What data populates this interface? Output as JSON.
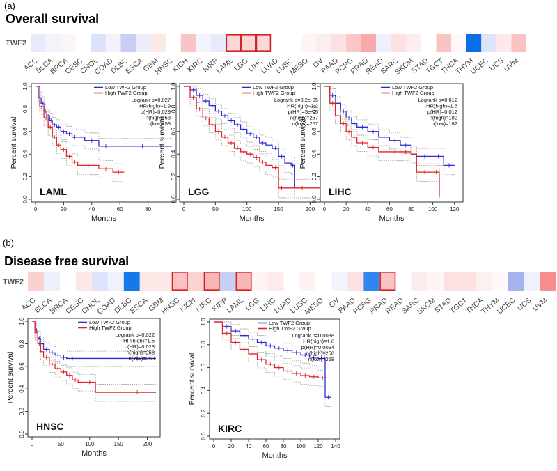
{
  "panels": {
    "a": {
      "label": "(a)",
      "title": "Overall survival",
      "gene": "TWF2",
      "heatmap": {
        "cancers": [
          "ACC",
          "BLCA",
          "BRCA",
          "CESC",
          "CHOL",
          "COAD",
          "DLBC",
          "ESCA",
          "GBM",
          "HNSC",
          "KICH",
          "KIRC",
          "KIRP",
          "LAML",
          "LGG",
          "LIHC",
          "LUAD",
          "LUSC",
          "MESO",
          "OV",
          "PAAD",
          "PCPG",
          "PRAD",
          "READ",
          "SARC",
          "SKCM",
          "STAD",
          "TGCT",
          "THCA",
          "THYM",
          "UCEC",
          "UCS",
          "UVM"
        ],
        "colors": [
          "#e6eafc",
          "#f2f3fd",
          "#fbf5f7",
          "#ffffff",
          "#dde2fb",
          "#f2f2fb",
          "#c7cdf4",
          "#eceefb",
          "#fde8e8",
          "#ffffff",
          "#fbc4c4",
          "#f2f3fd",
          "#e6eafc",
          "#fdd7d7",
          "#fbd4d4",
          "#fcd9d9",
          "#ffffff",
          "#ffffff",
          "#fff5f5",
          "#fdeeee",
          "#fde1e1",
          "#fbc6c6",
          "#f9a9a9",
          "#eef0fb",
          "#fde0e0",
          "#fdeded",
          "#ffffff",
          "#fbc2c2",
          "#fff8f8",
          "#0a6fe6",
          "#dde3fb",
          "#fde9e9",
          "#fbc2c2"
        ],
        "highlighted": [
          "LAML",
          "LGG",
          "LIHC"
        ]
      }
    },
    "b": {
      "label": "(b)",
      "title": "Disease free survival",
      "gene": "TWF2",
      "heatmap": {
        "cancers": [
          "ACC",
          "BLCA",
          "BRCA",
          "CESC",
          "CHOL",
          "COAD",
          "DLBC",
          "ESCA",
          "GBM",
          "HNSC",
          "KICH",
          "KIRC",
          "KIRP",
          "LAML",
          "LGG",
          "LIHC",
          "LUAD",
          "LUSC",
          "MESO",
          "OV",
          "PAAD",
          "PCPG",
          "PRAD",
          "READ",
          "SARC",
          "SKCM",
          "STAD",
          "TGCT",
          "THCA",
          "THYM",
          "UCEC",
          "UCS",
          "UVM"
        ],
        "colors": [
          "#fbd0d0",
          "#eef0fb",
          "#ffffff",
          "#fde6e6",
          "#dde3fb",
          "#f0f2fb",
          "#1579ea",
          "#fde8e8",
          "#fde8e8",
          "#fbc2c2",
          "#fcd3d3",
          "#f9b4b4",
          "#c8cff4",
          "#f9b6b6",
          "#fff5f5",
          "#fdeaea",
          "#ffffff",
          "#fdf1f1",
          "#ffffff",
          "#f2f4fc",
          "#fde0e0",
          "#2e87ee",
          "#fbc4c4",
          "#ffffff",
          "#fdecec",
          "#fff5f5",
          "#fde1e1",
          "#fde1e1",
          "#fdf0f0",
          "#fff8f8",
          "#a5b3ee",
          "#f0f2fb",
          "#f58e8e"
        ],
        "highlighted": [
          "HNSC",
          "KIRC",
          "LAML",
          "PRAD"
        ]
      }
    }
  },
  "chart_data": [
    {
      "type": "line",
      "panel": "a",
      "title": "LAML",
      "xlabel": "Months",
      "ylabel": "Percent survival",
      "xlim": [
        0,
        97
      ],
      "ylim": [
        0,
        1.0
      ],
      "xticks": [
        "0",
        "20",
        "40",
        "60",
        "80"
      ],
      "yticks": [
        "0.0",
        "0.2",
        "0.4",
        "0.6",
        "0.8",
        "1.0"
      ],
      "legend": [
        "Low TWF2 Group",
        "High TWF2 Group"
      ],
      "stats": [
        "Logrank p=0.027",
        "HR(high)=1.9",
        "p(HR)=0.029",
        "n(high)=53",
        "n(low)=53"
      ],
      "series": [
        {
          "name": "Low TWF2 Group",
          "color": "#2b2bd6",
          "x": [
            0,
            2,
            4,
            6,
            8,
            10,
            12,
            15,
            18,
            22,
            26,
            30,
            35,
            45,
            55,
            97
          ],
          "y": [
            1,
            0.9,
            0.85,
            0.78,
            0.74,
            0.7,
            0.66,
            0.64,
            0.6,
            0.58,
            0.55,
            0.55,
            0.52,
            0.47,
            0.47,
            0.47
          ]
        },
        {
          "name": "High TWF2 Group",
          "color": "#e0222a",
          "x": [
            0,
            3,
            6,
            9,
            12,
            15,
            18,
            22,
            26,
            30,
            45,
            55,
            63
          ],
          "y": [
            1,
            0.82,
            0.72,
            0.64,
            0.55,
            0.48,
            0.44,
            0.38,
            0.33,
            0.3,
            0.27,
            0.24,
            0.24
          ]
        }
      ]
    },
    {
      "type": "line",
      "panel": "a",
      "title": "LGG",
      "xlabel": "Months",
      "ylabel": "Percent survival",
      "xlim": [
        0,
        215
      ],
      "ylim": [
        0,
        1.0
      ],
      "xticks": [
        "0",
        "50",
        "100",
        "150",
        "200"
      ],
      "yticks": [
        "0.0",
        "0.2",
        "0.4",
        "0.6",
        "0.8",
        "1.0"
      ],
      "legend": [
        "Low TWF2 Group",
        "High TWF2 Group"
      ],
      "stats": [
        "Logrank p=3.2e-05",
        "HR(high)=2.2",
        "p(HR)=5e-05",
        "n(high)=257",
        "n(low)=257"
      ],
      "series": [
        {
          "name": "Low TWF2 Group",
          "color": "#2b2bd6",
          "x": [
            0,
            10,
            20,
            30,
            40,
            50,
            60,
            70,
            80,
            90,
            100,
            110,
            120,
            130,
            140,
            150,
            160,
            170,
            175
          ],
          "y": [
            1,
            0.97,
            0.92,
            0.87,
            0.83,
            0.78,
            0.74,
            0.7,
            0.66,
            0.62,
            0.58,
            0.55,
            0.5,
            0.48,
            0.45,
            0.38,
            0.32,
            0.3,
            0.1
          ]
        },
        {
          "name": "High TWF2 Group",
          "color": "#e0222a",
          "x": [
            0,
            10,
            20,
            30,
            40,
            50,
            60,
            70,
            80,
            90,
            100,
            110,
            120,
            130,
            140,
            150,
            160,
            215
          ],
          "y": [
            1,
            0.9,
            0.8,
            0.72,
            0.66,
            0.6,
            0.55,
            0.5,
            0.45,
            0.42,
            0.4,
            0.37,
            0.33,
            0.3,
            0.28,
            0.1,
            0.1,
            0.1
          ]
        }
      ]
    },
    {
      "type": "line",
      "panel": "a",
      "title": "LIHC",
      "xlabel": "Months",
      "ylabel": "Percent survival",
      "xlim": [
        0,
        124
      ],
      "ylim": [
        0,
        1.0
      ],
      "xticks": [
        "0",
        "20",
        "40",
        "60",
        "80",
        "100",
        "120"
      ],
      "yticks": [
        "0.0",
        "0.2",
        "0.4",
        "0.6",
        "0.8",
        "1.0"
      ],
      "legend": [
        "Low TWF2 Group",
        "High TWF2 Group"
      ],
      "stats": [
        "Logrank p=0.012",
        "HR(high)=1.6",
        "p(HR)=0.012",
        "n(high)=182",
        "n(low)=182"
      ],
      "series": [
        {
          "name": "Low TWF2 Group",
          "color": "#2b2bd6",
          "x": [
            0,
            5,
            10,
            15,
            20,
            25,
            30,
            40,
            50,
            60,
            70,
            80,
            85,
            100,
            110,
            120
          ],
          "y": [
            1,
            0.92,
            0.85,
            0.78,
            0.72,
            0.67,
            0.64,
            0.6,
            0.55,
            0.52,
            0.48,
            0.4,
            0.38,
            0.38,
            0.3,
            0.3
          ]
        },
        {
          "name": "High TWF2 Group",
          "color": "#e0222a",
          "x": [
            0,
            5,
            10,
            15,
            20,
            25,
            30,
            40,
            50,
            60,
            70,
            80,
            85,
            100,
            106
          ],
          "y": [
            1,
            0.85,
            0.74,
            0.67,
            0.6,
            0.55,
            0.5,
            0.46,
            0.42,
            0.42,
            0.42,
            0.4,
            0.24,
            0.24,
            0.02
          ]
        }
      ]
    },
    {
      "type": "line",
      "panel": "b",
      "title": "HNSC",
      "xlabel": "Months",
      "ylabel": "Percent survival",
      "xlim": [
        0,
        215
      ],
      "ylim": [
        0,
        1.0
      ],
      "xticks": [
        "0",
        "50",
        "100",
        "150",
        "200"
      ],
      "yticks": [
        "0.0",
        "0.2",
        "0.4",
        "0.6",
        "0.8",
        "1.0"
      ],
      "legend": [
        "Low TWF2 Group",
        "High TWF2 Group"
      ],
      "stats": [
        "Logrank p=0.022",
        "HR(high)=1.5",
        "p(HR)=0.023",
        "n(high)=258",
        "n(low)=259"
      ],
      "series": [
        {
          "name": "Low TWF2 Group",
          "color": "#2b2bd6",
          "x": [
            0,
            5,
            10,
            15,
            20,
            30,
            40,
            50,
            60,
            80,
            100,
            150,
            215
          ],
          "y": [
            1,
            0.92,
            0.85,
            0.8,
            0.75,
            0.72,
            0.7,
            0.68,
            0.67,
            0.67,
            0.67,
            0.67,
            0.67
          ]
        },
        {
          "name": "High TWF2 Group",
          "color": "#e0222a",
          "x": [
            0,
            5,
            10,
            15,
            20,
            30,
            40,
            50,
            60,
            70,
            80,
            90,
            110,
            150,
            215
          ],
          "y": [
            1,
            0.9,
            0.8,
            0.73,
            0.68,
            0.62,
            0.58,
            0.55,
            0.52,
            0.48,
            0.46,
            0.46,
            0.37,
            0.37,
            0.37
          ]
        }
      ]
    },
    {
      "type": "line",
      "panel": "b",
      "title": "KIRC",
      "xlabel": "Months",
      "ylabel": "Percent survival",
      "xlim": [
        0,
        140
      ],
      "ylim": [
        0,
        1.0
      ],
      "xticks": [
        "0",
        "20",
        "40",
        "60",
        "80",
        "100",
        "120",
        "140"
      ],
      "yticks": [
        "0.0",
        "0.2",
        "0.4",
        "0.6",
        "0.8",
        "1.0"
      ],
      "legend": [
        "Low TWF2 Group",
        "High TWF2 Group"
      ],
      "stats": [
        "Logrank p=0.0088",
        "HR(high)=1.6",
        "p(HR)=0.0094",
        "n(high)=258",
        "n(low)=258"
      ],
      "series": [
        {
          "name": "Low TWF2 Group",
          "color": "#2b2bd6",
          "x": [
            0,
            10,
            20,
            30,
            40,
            50,
            60,
            70,
            80,
            90,
            100,
            110,
            120,
            127,
            128,
            135
          ],
          "y": [
            1,
            0.96,
            0.92,
            0.88,
            0.85,
            0.82,
            0.79,
            0.77,
            0.75,
            0.73,
            0.71,
            0.69,
            0.68,
            0.68,
            0.34,
            0.34
          ]
        },
        {
          "name": "High TWF2 Group",
          "color": "#e0222a",
          "x": [
            0,
            10,
            20,
            30,
            40,
            50,
            60,
            70,
            80,
            90,
            100,
            110,
            120,
            130
          ],
          "y": [
            1,
            0.9,
            0.82,
            0.76,
            0.72,
            0.67,
            0.63,
            0.6,
            0.57,
            0.55,
            0.53,
            0.52,
            0.51,
            0.51
          ]
        }
      ]
    }
  ]
}
